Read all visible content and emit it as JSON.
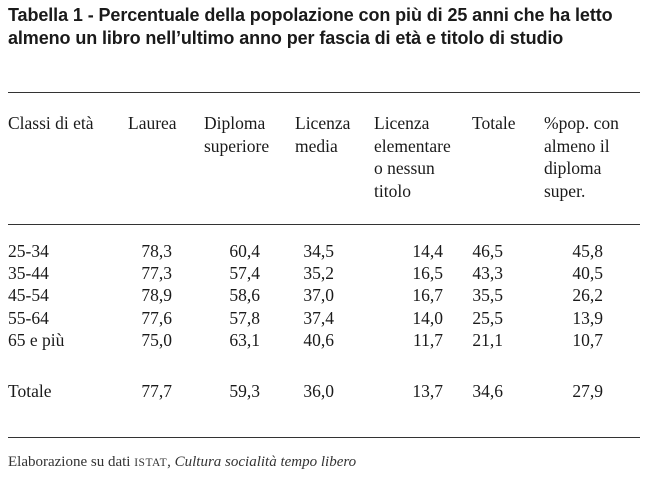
{
  "title": "Tabella 1 - Percentuale della popolazione con più di 25 anni che ha letto almeno un libro nell’ultimo anno per fascia di età e titolo di studio",
  "columns": [
    {
      "key": "classi",
      "lines": [
        "Classi di età"
      ]
    },
    {
      "key": "laurea",
      "lines": [
        "Laurea"
      ]
    },
    {
      "key": "diploma",
      "lines": [
        "Diploma",
        "superiore"
      ]
    },
    {
      "key": "media",
      "lines": [
        "Licenza",
        "media"
      ]
    },
    {
      "key": "elementare",
      "lines": [
        "Licenza",
        "elementare",
        "o nessun",
        "titolo"
      ]
    },
    {
      "key": "totale",
      "lines": [
        "Totale"
      ]
    },
    {
      "key": "perc",
      "lines": [
        "%pop. con",
        "almeno il",
        "diploma",
        "super."
      ]
    }
  ],
  "rows": [
    [
      "25-34",
      "78,3",
      "60,4",
      "34,5",
      "14,4",
      "46,5",
      "45,8"
    ],
    [
      "35-44",
      "77,3",
      "57,4",
      "35,2",
      "16,5",
      "43,3",
      "40,5"
    ],
    [
      "45-54",
      "78,9",
      "58,6",
      "37,0",
      "16,7",
      "35,5",
      "26,2"
    ],
    [
      "55-64",
      "77,6",
      "57,8",
      "37,4",
      "14,0",
      "25,5",
      "13,9"
    ],
    [
      "65 e più",
      "75,0",
      "63,1",
      "40,6",
      "11,7",
      "21,1",
      "10,7"
    ]
  ],
  "total_row": [
    "Totale",
    "77,7",
    "59,3",
    "36,0",
    "13,7",
    "34,6",
    "27,9"
  ],
  "source": {
    "prefix": "Elaborazione su dati ",
    "agency": "ISTAT",
    "separator": ", ",
    "publication": "Cultura socialità tempo libero"
  }
}
